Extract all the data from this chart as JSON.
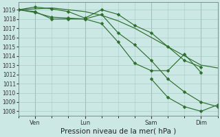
{
  "background_color": "#cce8e4",
  "grid_color": "#a8ccc8",
  "line_color": "#2d6e2d",
  "xlabel": "Pression niveau de la mer( hPa )",
  "xlabel_fontsize": 7.5,
  "ylim": [
    1007.5,
    1019.8
  ],
  "yticks": [
    1008,
    1009,
    1010,
    1011,
    1012,
    1013,
    1014,
    1015,
    1016,
    1017,
    1018,
    1019
  ],
  "xtick_labels": [
    "Ven",
    "Lun",
    "Sam",
    "Dim"
  ],
  "xtick_positions": [
    24,
    96,
    192,
    264
  ],
  "xlim": [
    0,
    288
  ],
  "vline_positions": [
    24,
    96,
    192,
    264
  ],
  "lines": [
    {
      "x": [
        0,
        24,
        48,
        72,
        96,
        120,
        144,
        168,
        192,
        216,
        240,
        264,
        288
      ],
      "y": [
        1019.0,
        1019.1,
        1019.2,
        1019.0,
        1018.8,
        1018.4,
        1017.8,
        1017.0,
        1016.0,
        1015.0,
        1014.0,
        1013.0,
        1012.7
      ],
      "markers": false
    },
    {
      "x": [
        0,
        24,
        48,
        72,
        96,
        120,
        144,
        168,
        192,
        216,
        240,
        264
      ],
      "y": [
        1019.0,
        1019.3,
        1019.1,
        1018.8,
        1018.1,
        1019.0,
        1018.5,
        1017.3,
        1016.5,
        1015.0,
        1013.5,
        1012.8
      ],
      "markers": true
    },
    {
      "x": [
        0,
        24,
        48,
        72,
        96,
        120,
        144,
        168,
        192,
        216,
        240,
        264
      ],
      "y": [
        1019.0,
        1018.7,
        1018.2,
        1018.1,
        1018.0,
        1017.5,
        1015.5,
        1013.2,
        1012.4,
        1012.4,
        1014.2,
        1012.2
      ],
      "markers": true
    },
    {
      "x": [
        0,
        24,
        48,
        72,
        96,
        120,
        144,
        168,
        192,
        216,
        240,
        264,
        288
      ],
      "y": [
        1019.0,
        1018.8,
        1018.0,
        1018.0,
        1018.0,
        1018.5,
        1016.5,
        1015.2,
        1013.5,
        1011.5,
        1010.1,
        1009.0,
        1008.5
      ],
      "markers": true
    },
    {
      "x": [
        192,
        216,
        240,
        264,
        288
      ],
      "y": [
        1011.5,
        1009.5,
        1008.5,
        1008.0,
        1008.7
      ],
      "markers": true
    }
  ]
}
